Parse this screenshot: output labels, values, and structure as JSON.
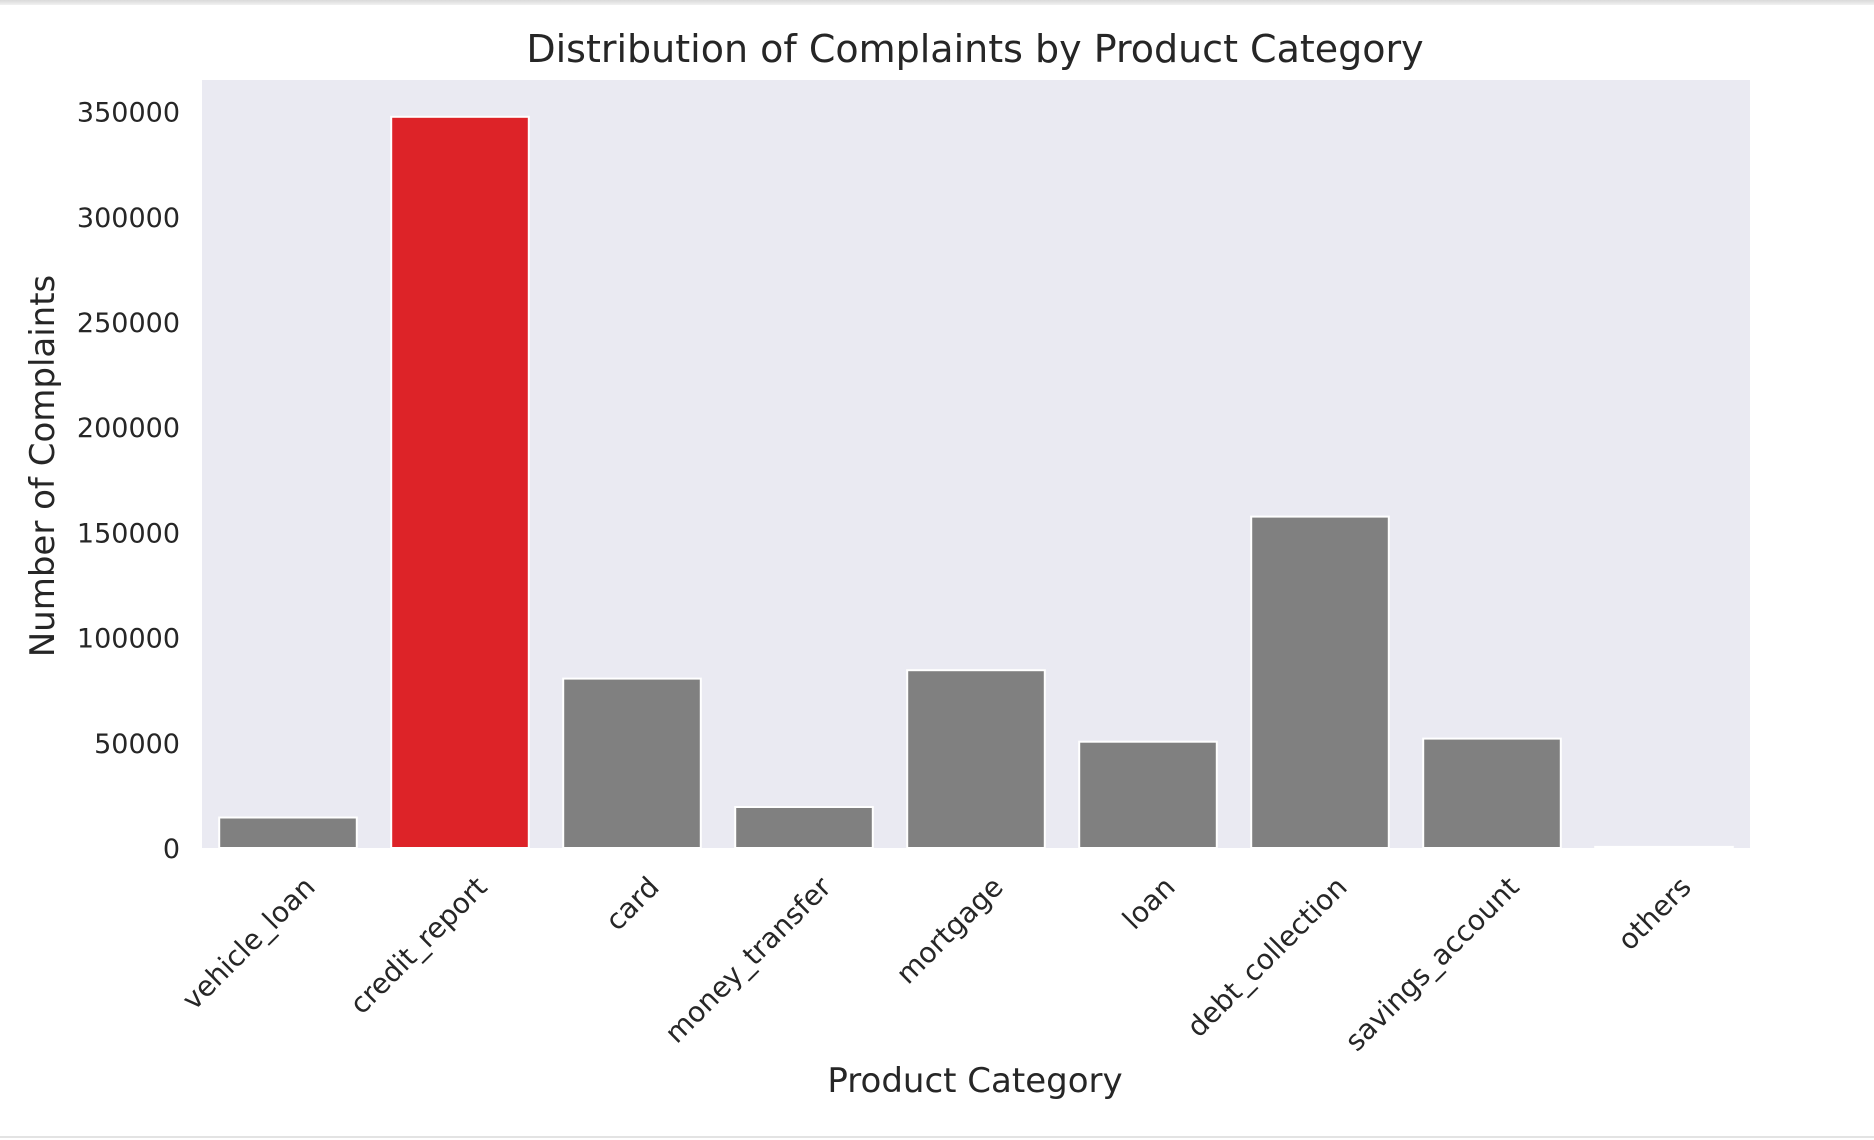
{
  "chart_data": {
    "type": "bar",
    "title": "Distribution of Complaints by Product Category",
    "xlabel": "Product Category",
    "ylabel": "Number of Complaints",
    "categories": [
      "vehicle_loan",
      "credit_report",
      "card",
      "money_transfer",
      "mortgage",
      "loan",
      "debt_collection",
      "savings_account",
      "others"
    ],
    "values": [
      14500,
      347500,
      80500,
      19500,
      84500,
      50500,
      157500,
      52000,
      500
    ],
    "colors": [
      "#808080",
      "#dd2328",
      "#808080",
      "#808080",
      "#808080",
      "#808080",
      "#808080",
      "#808080",
      "#808080"
    ],
    "highlight_color": "#dd2328",
    "bar_color": "#808080",
    "plot_background": "#eaeaf2",
    "ylim": [
      0,
      365000
    ],
    "yticks": [
      0,
      50000,
      100000,
      150000,
      200000,
      250000,
      300000,
      350000
    ],
    "grid": false,
    "legend": "none"
  }
}
